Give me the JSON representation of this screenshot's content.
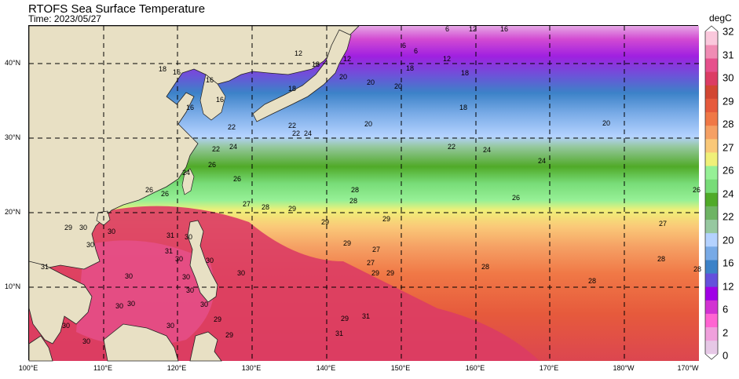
{
  "title": "RTOFS Sea Surface Temperature",
  "subtitle": "Time: 2023/05/27",
  "colorbar": {
    "unit": "degC",
    "ticks": [
      "0",
      "2",
      "6",
      "12",
      "16",
      "20",
      "22",
      "24",
      "26",
      "27",
      "28",
      "29",
      "30",
      "31",
      "32"
    ],
    "colors": [
      "#e6c8e6",
      "#f0a0dc",
      "#ff64d2",
      "#d232d2",
      "#a000e6",
      "#6450dc",
      "#3c82c8",
      "#78aae6",
      "#b4d2ff",
      "#96c8a0",
      "#6eb464",
      "#50aa28",
      "#78dc78",
      "#96f096",
      "#f0f078",
      "#fac878",
      "#f5a064",
      "#f07846",
      "#e65a3c",
      "#d24632",
      "#dc3c64",
      "#e6508c",
      "#f08cb4",
      "#fac8dc"
    ]
  },
  "map": {
    "x_ticks": [
      "100°E",
      "110°E",
      "120°E",
      "130°E",
      "140°E",
      "150°E",
      "160°E",
      "170°E",
      "180°W",
      "170°W"
    ],
    "y_ticks": [
      "40°N",
      "30°N",
      "20°N",
      "10°N"
    ],
    "contour_labels": [
      "16",
      "16",
      "16",
      "16",
      "18",
      "18",
      "18",
      "18",
      "18",
      "18",
      "12",
      "12",
      "12",
      "6",
      "6",
      "6",
      "16",
      "12",
      "20",
      "20",
      "20",
      "20",
      "20",
      "22",
      "22",
      "22",
      "22",
      "22",
      "24",
      "24",
      "24",
      "24",
      "24",
      "26",
      "26",
      "26",
      "26",
      "26",
      "26",
      "27",
      "27",
      "27",
      "27",
      "28",
      "28",
      "28",
      "28",
      "28",
      "28",
      "28",
      "29",
      "29",
      "29",
      "29",
      "29",
      "29",
      "29",
      "29",
      "29",
      "29",
      "30",
      "30",
      "30",
      "30",
      "30",
      "30",
      "30",
      "30",
      "30",
      "30",
      "30",
      "30",
      "30",
      "30",
      "30",
      "30",
      "31",
      "31",
      "31",
      "31",
      "31"
    ]
  }
}
